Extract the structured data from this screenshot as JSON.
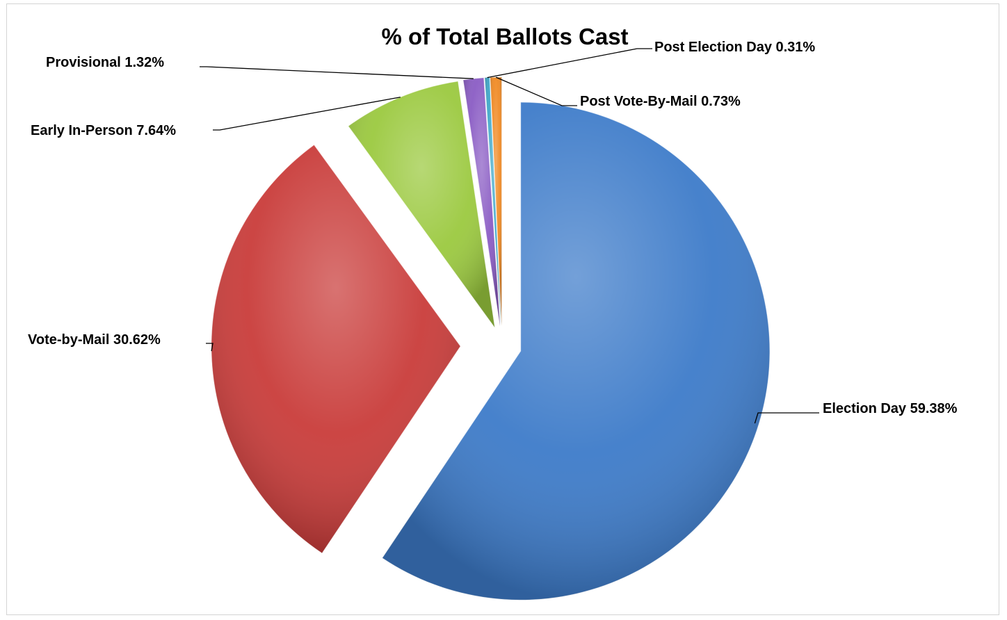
{
  "chart_data": {
    "type": "pie",
    "title": "% of Total Ballots Cast",
    "categories": [
      "Election Day",
      "Vote-by-Mail",
      "Early In-Person",
      "Provisional",
      "Post Election Day",
      "Post Vote-By-Mail"
    ],
    "values": [
      59.38,
      30.62,
      7.64,
      1.32,
      0.31,
      0.73
    ],
    "labels": [
      "Election Day 59.38%",
      "Vote-by-Mail 30.62%",
      "Early In-Person 7.64%",
      "Provisional 1.32%",
      "Post Election Day 0.31%",
      "Post Vote-By-Mail 0.73%"
    ],
    "colors": [
      "#3d7bc9",
      "#c93c3a",
      "#9bc93f",
      "#8a5cc4",
      "#3fa8c9",
      "#f08a24"
    ],
    "exploded": [
      "Vote-by-Mail"
    ],
    "legend": "none",
    "grid": false
  }
}
